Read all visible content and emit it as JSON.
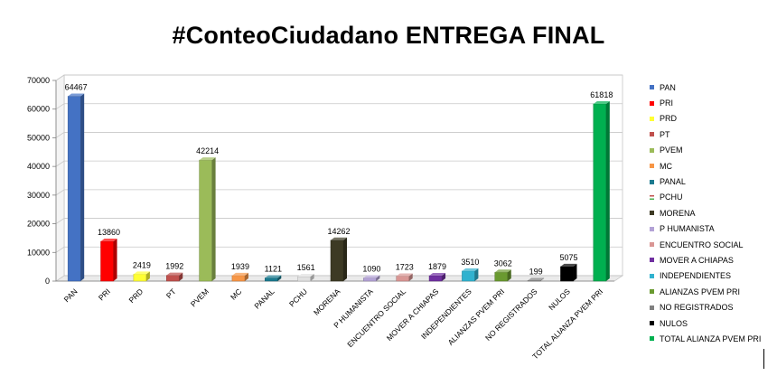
{
  "page": {
    "title": "#ConteoCiudadano ENTREGA FINAL"
  },
  "chart_data": {
    "type": "bar",
    "title": "#ConteoCiudadano ENTREGA FINAL",
    "xlabel": "",
    "ylabel": "",
    "ylim": [
      0,
      70000
    ],
    "yticks": [
      "0",
      "10000",
      "20000",
      "30000",
      "40000",
      "50000",
      "60000",
      "70000"
    ],
    "grid": true,
    "legend_position": "right",
    "categories": [
      "PAN",
      "PRI",
      "PRD",
      "PT",
      "PVEM",
      "MC",
      "PANAL",
      "PCHU",
      "MORENA",
      "P HUMANISTA",
      "ENCUENTRO SOCIAL",
      "MOVER A CHIAPAS",
      "INDEPENDIENTES",
      "ALIANZAS PVEM PRI",
      "NO REGISTRADOS",
      "NULOS",
      "TOTAL ALIANZA PVEM PRI"
    ],
    "values": [
      64467,
      13860,
      2419,
      1992,
      42214,
      1939,
      1121,
      1561,
      14262,
      1090,
      1723,
      1879,
      3510,
      3062,
      199,
      5075,
      61818
    ],
    "colors": [
      "#4472c4",
      "#ff0000",
      "#ffff33",
      "#c0504d",
      "#9bbb59",
      "#f79646",
      "#1b7a8f",
      "#e0e0e0",
      "#3d3a24",
      "#b3a2d6",
      "#d99694",
      "#7030a0",
      "#31b2cf",
      "#6a9a30",
      "#808080",
      "#000000",
      "#00b050"
    ]
  }
}
